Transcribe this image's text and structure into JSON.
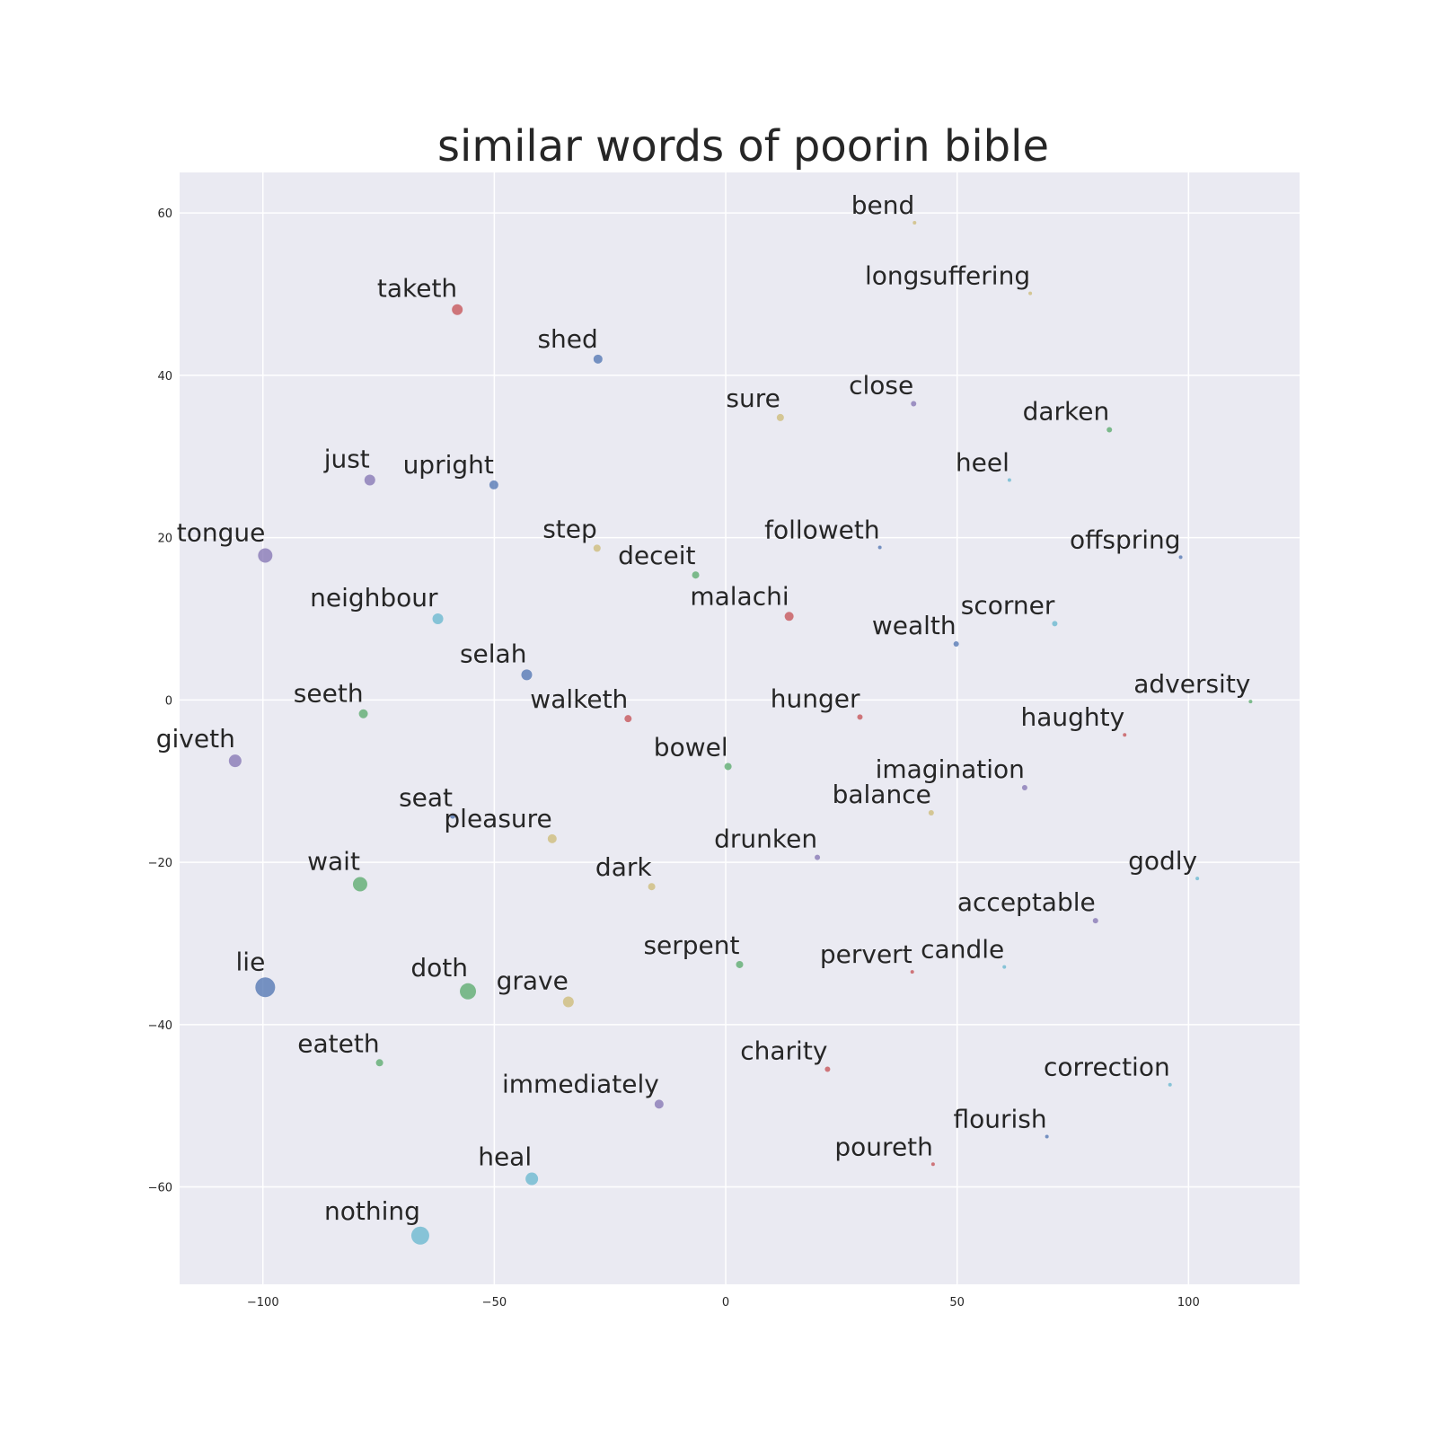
{
  "chart_data": {
    "type": "scatter",
    "title": "similar words of poorin bible",
    "xlabel": "",
    "ylabel": "",
    "xlim": [
      -118,
      124
    ],
    "ylim": [
      -72,
      65
    ],
    "xticks": [
      -100,
      -50,
      0,
      50,
      100
    ],
    "yticks": [
      60,
      40,
      20,
      0,
      -20,
      -40,
      -60
    ],
    "grid": true,
    "colors": {
      "blue": "#4c72b0",
      "green": "#55a868",
      "red": "#c44e52",
      "purple": "#8172b2",
      "yellow": "#ccb974",
      "cyan": "#64b5cd"
    },
    "points": [
      {
        "label": "bend",
        "x": 40.8,
        "y": 58.8,
        "size": 2,
        "color": "yellow"
      },
      {
        "label": "longsuffering",
        "x": 65.8,
        "y": 50.1,
        "size": 2,
        "color": "yellow"
      },
      {
        "label": "taketh",
        "x": -58.0,
        "y": 48.1,
        "size": 6,
        "color": "red"
      },
      {
        "label": "shed",
        "x": -27.6,
        "y": 42.0,
        "size": 5,
        "color": "blue"
      },
      {
        "label": "close",
        "x": 40.6,
        "y": 36.5,
        "size": 3,
        "color": "purple"
      },
      {
        "label": "sure",
        "x": 11.8,
        "y": 34.8,
        "size": 4,
        "color": "yellow"
      },
      {
        "label": "darken",
        "x": 82.9,
        "y": 33.3,
        "size": 3,
        "color": "green"
      },
      {
        "label": "just",
        "x": -76.9,
        "y": 27.1,
        "size": 6,
        "color": "purple"
      },
      {
        "label": "upright",
        "x": -50.1,
        "y": 26.5,
        "size": 5,
        "color": "blue"
      },
      {
        "label": "heel",
        "x": 61.3,
        "y": 27.1,
        "size": 2,
        "color": "cyan"
      },
      {
        "label": "tongue",
        "x": -99.5,
        "y": 17.8,
        "size": 8,
        "color": "purple"
      },
      {
        "label": "step",
        "x": -27.8,
        "y": 18.7,
        "size": 4,
        "color": "yellow"
      },
      {
        "label": "followeth",
        "x": 33.3,
        "y": 18.8,
        "size": 2,
        "color": "blue"
      },
      {
        "label": "offspring",
        "x": 98.3,
        "y": 17.6,
        "size": 2,
        "color": "blue"
      },
      {
        "label": "deceit",
        "x": -6.5,
        "y": 15.4,
        "size": 4,
        "color": "green"
      },
      {
        "label": "neighbour",
        "x": -62.2,
        "y": 10.0,
        "size": 6,
        "color": "cyan"
      },
      {
        "label": "malachi",
        "x": 13.7,
        "y": 10.3,
        "size": 5,
        "color": "red"
      },
      {
        "label": "scorner",
        "x": 71.1,
        "y": 9.4,
        "size": 3,
        "color": "cyan"
      },
      {
        "label": "wealth",
        "x": 49.8,
        "y": 6.9,
        "size": 3,
        "color": "blue"
      },
      {
        "label": "selah",
        "x": -43.0,
        "y": 3.1,
        "size": 6,
        "color": "blue"
      },
      {
        "label": "adversity",
        "x": 113.4,
        "y": -0.2,
        "size": 2,
        "color": "green"
      },
      {
        "label": "seeth",
        "x": -78.3,
        "y": -1.7,
        "size": 5,
        "color": "green"
      },
      {
        "label": "walketh",
        "x": -21.1,
        "y": -2.3,
        "size": 4,
        "color": "red"
      },
      {
        "label": "hunger",
        "x": 29.0,
        "y": -2.1,
        "size": 3,
        "color": "red"
      },
      {
        "label": "haughty",
        "x": 86.2,
        "y": -4.3,
        "size": 2,
        "color": "red"
      },
      {
        "label": "giveth",
        "x": -106.0,
        "y": -7.5,
        "size": 7,
        "color": "purple"
      },
      {
        "label": "bowel",
        "x": 0.5,
        "y": -8.2,
        "size": 4,
        "color": "green"
      },
      {
        "label": "imagination",
        "x": 64.6,
        "y": -10.8,
        "size": 3,
        "color": "purple"
      },
      {
        "label": "balance",
        "x": 44.4,
        "y": -13.9,
        "size": 3,
        "color": "yellow"
      },
      {
        "label": "seat",
        "x": -59.0,
        "y": -14.3,
        "size": 3,
        "color": "blue"
      },
      {
        "label": "pleasure",
        "x": -37.5,
        "y": -17.1,
        "size": 5,
        "color": "yellow"
      },
      {
        "label": "drunken",
        "x": 19.8,
        "y": -19.4,
        "size": 3,
        "color": "purple"
      },
      {
        "label": "godly",
        "x": 101.9,
        "y": -22.0,
        "size": 2,
        "color": "cyan"
      },
      {
        "label": "wait",
        "x": -79.0,
        "y": -22.7,
        "size": 8,
        "color": "green"
      },
      {
        "label": "dark",
        "x": -16.0,
        "y": -23.0,
        "size": 4,
        "color": "yellow"
      },
      {
        "label": "acceptable",
        "x": 79.9,
        "y": -27.2,
        "size": 3,
        "color": "purple"
      },
      {
        "label": "serpent",
        "x": 3.0,
        "y": -32.6,
        "size": 4,
        "color": "green"
      },
      {
        "label": "candle",
        "x": 60.2,
        "y": -32.9,
        "size": 2,
        "color": "cyan"
      },
      {
        "label": "pervert",
        "x": 40.3,
        "y": -33.5,
        "size": 2,
        "color": "red"
      },
      {
        "label": "lie",
        "x": -99.5,
        "y": -35.4,
        "size": 11,
        "color": "blue"
      },
      {
        "label": "doth",
        "x": -55.7,
        "y": -35.9,
        "size": 9,
        "color": "green"
      },
      {
        "label": "grave",
        "x": -34.0,
        "y": -37.2,
        "size": 6,
        "color": "yellow"
      },
      {
        "label": "eateth",
        "x": -74.8,
        "y": -44.7,
        "size": 4,
        "color": "green"
      },
      {
        "label": "charity",
        "x": 22.0,
        "y": -45.5,
        "size": 3,
        "color": "red"
      },
      {
        "label": "correction",
        "x": 96.0,
        "y": -47.4,
        "size": 2,
        "color": "cyan"
      },
      {
        "label": "immediately",
        "x": -14.4,
        "y": -49.8,
        "size": 5,
        "color": "purple"
      },
      {
        "label": "flourish",
        "x": 69.4,
        "y": -53.8,
        "size": 2,
        "color": "blue"
      },
      {
        "label": "poureth",
        "x": 44.8,
        "y": -57.2,
        "size": 2,
        "color": "red"
      },
      {
        "label": "heal",
        "x": -41.9,
        "y": -59.0,
        "size": 7,
        "color": "cyan"
      },
      {
        "label": "nothing",
        "x": -66.0,
        "y": -66.0,
        "size": 10,
        "color": "cyan"
      }
    ]
  }
}
